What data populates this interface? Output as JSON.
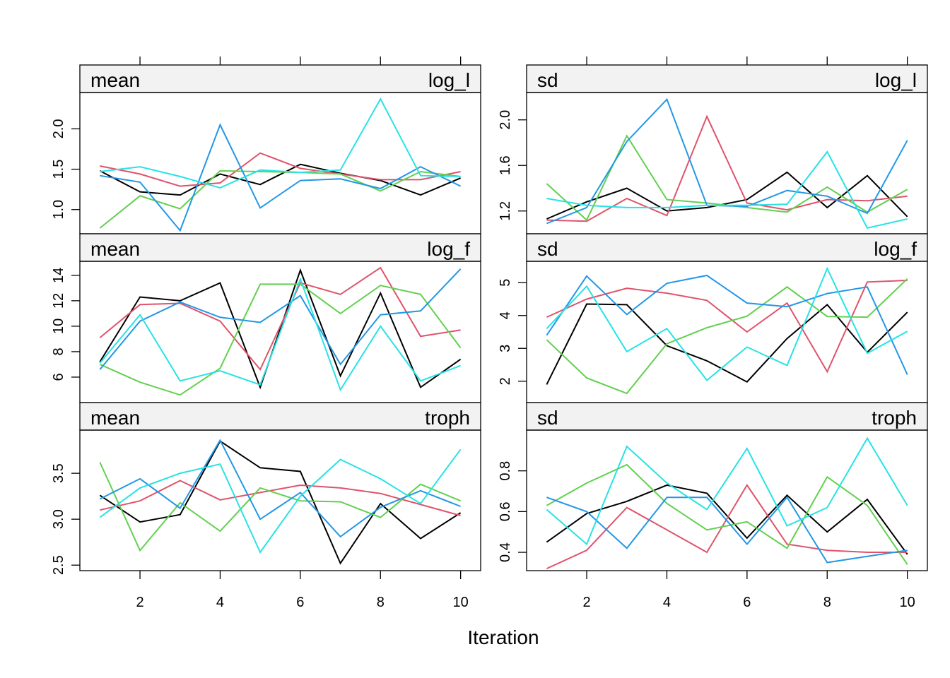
{
  "chart_data": {
    "type": "line",
    "xlabel": "Iteration",
    "x": [
      1,
      2,
      3,
      4,
      5,
      6,
      7,
      8,
      9,
      10
    ],
    "x_ticks": [
      2,
      4,
      6,
      8,
      10
    ],
    "xlim": [
      0.5,
      10.5
    ],
    "series_colors": [
      "#000000",
      "#DF536B",
      "#61D04F",
      "#2297E6",
      "#28E2E5"
    ],
    "layout": "2 columns x 3 rows",
    "panels": [
      {
        "stat": "mean",
        "variable": "log_l",
        "ylim": [
          0.7,
          2.45
        ],
        "y_ticks": [
          1.0,
          1.5,
          2.0
        ],
        "y_tick_labels": [
          "1.0",
          "1.5",
          "2.0"
        ],
        "series": [
          {
            "values": [
              1.48,
              1.22,
              1.18,
              1.44,
              1.31,
              1.56,
              1.45,
              1.36,
              1.18,
              1.39
            ]
          },
          {
            "values": [
              1.54,
              1.44,
              1.29,
              1.33,
              1.7,
              1.51,
              1.44,
              1.37,
              1.37,
              1.47
            ]
          },
          {
            "values": [
              0.77,
              1.17,
              1.01,
              1.48,
              1.47,
              1.46,
              1.44,
              1.23,
              1.47,
              1.41
            ]
          },
          {
            "values": [
              1.42,
              1.34,
              0.74,
              2.05,
              1.02,
              1.36,
              1.38,
              1.26,
              1.53,
              1.29
            ]
          },
          {
            "values": [
              1.47,
              1.53,
              1.41,
              1.27,
              1.49,
              1.46,
              1.49,
              2.37,
              1.42,
              1.41
            ]
          }
        ]
      },
      {
        "stat": "sd",
        "variable": "log_l",
        "ylim": [
          1.0,
          2.24
        ],
        "y_ticks": [
          1.2,
          1.6,
          2.0
        ],
        "y_tick_labels": [
          "1.2",
          "1.6",
          "2.0"
        ],
        "series": [
          {
            "values": [
              1.13,
              1.28,
              1.4,
              1.2,
              1.23,
              1.3,
              1.54,
              1.23,
              1.51,
              1.15
            ]
          },
          {
            "values": [
              1.12,
              1.11,
              1.31,
              1.16,
              2.03,
              1.27,
              1.21,
              1.3,
              1.29,
              1.33
            ]
          },
          {
            "values": [
              1.44,
              1.12,
              1.86,
              1.3,
              1.27,
              1.23,
              1.19,
              1.41,
              1.19,
              1.39
            ]
          },
          {
            "values": [
              1.09,
              1.23,
              1.81,
              2.18,
              1.25,
              1.24,
              1.38,
              1.33,
              1.18,
              1.82
            ]
          },
          {
            "values": [
              1.31,
              1.25,
              1.23,
              1.23,
              1.25,
              1.25,
              1.26,
              1.72,
              1.05,
              1.13
            ]
          }
        ]
      },
      {
        "stat": "mean",
        "variable": "log_f",
        "ylim": [
          4.0,
          15.1
        ],
        "y_ticks": [
          6,
          8,
          10,
          12,
          14
        ],
        "y_tick_labels": [
          "6",
          "8",
          "10",
          "12",
          "14"
        ],
        "series": [
          {
            "values": [
              7.2,
              12.3,
              12.0,
              13.4,
              5.2,
              14.4,
              6.1,
              12.6,
              5.2,
              7.4
            ]
          },
          {
            "values": [
              9.1,
              11.7,
              11.8,
              10.4,
              6.6,
              13.4,
              12.5,
              14.6,
              9.2,
              9.7
            ]
          },
          {
            "values": [
              7.0,
              5.6,
              4.6,
              6.7,
              13.3,
              13.3,
              11.0,
              13.2,
              12.5,
              8.3
            ]
          },
          {
            "values": [
              6.6,
              10.4,
              11.9,
              10.7,
              10.3,
              12.4,
              7.0,
              10.9,
              11.2,
              14.5
            ]
          },
          {
            "values": [
              7.1,
              10.9,
              5.7,
              6.5,
              5.4,
              13.7,
              5.0,
              10.0,
              5.7,
              6.9
            ]
          }
        ]
      },
      {
        "stat": "sd",
        "variable": "log_f",
        "ylim": [
          1.35,
          5.65
        ],
        "y_ticks": [
          2,
          3,
          4,
          5
        ],
        "y_tick_labels": [
          "2",
          "3",
          "4",
          "5"
        ],
        "series": [
          {
            "values": [
              1.9,
              4.35,
              4.33,
              3.08,
              2.62,
              1.98,
              3.3,
              4.33,
              2.88,
              4.1
            ]
          },
          {
            "values": [
              3.95,
              4.5,
              4.83,
              4.68,
              4.46,
              3.5,
              4.38,
              2.29,
              5.02,
              5.07
            ]
          },
          {
            "values": [
              3.26,
              2.1,
              1.63,
              3.14,
              3.63,
              3.98,
              4.87,
              3.97,
              3.95,
              5.12
            ]
          },
          {
            "values": [
              3.4,
              5.2,
              4.03,
              4.98,
              5.22,
              4.38,
              4.27,
              4.67,
              4.87,
              2.2
            ]
          },
          {
            "values": [
              3.6,
              4.89,
              2.9,
              3.6,
              2.03,
              3.04,
              2.48,
              5.43,
              2.85,
              3.52
            ]
          }
        ]
      },
      {
        "stat": "mean",
        "variable": "troph",
        "ylim": [
          2.44,
          3.97
        ],
        "y_ticks": [
          2.5,
          3.0,
          3.5
        ],
        "y_tick_labels": [
          "2.5",
          "3.0",
          "3.5"
        ],
        "series": [
          {
            "values": [
              3.26,
              2.97,
              3.05,
              3.85,
              3.56,
              3.52,
              2.52,
              3.17,
              2.79,
              3.07
            ]
          },
          {
            "values": [
              3.1,
              3.2,
              3.42,
              3.21,
              3.29,
              3.37,
              3.34,
              3.28,
              3.16,
              3.04
            ]
          },
          {
            "values": [
              3.62,
              2.66,
              3.18,
              2.87,
              3.34,
              3.2,
              3.19,
              3.02,
              3.38,
              3.2
            ]
          },
          {
            "values": [
              3.22,
              3.44,
              3.12,
              3.86,
              3.0,
              3.29,
              2.81,
              3.13,
              3.31,
              3.14
            ]
          },
          {
            "values": [
              3.02,
              3.34,
              3.5,
              3.6,
              2.64,
              3.25,
              3.65,
              3.44,
              3.17,
              3.76
            ]
          }
        ]
      },
      {
        "stat": "sd",
        "variable": "troph",
        "ylim": [
          0.31,
          1.0
        ],
        "y_ticks": [
          0.4,
          0.6,
          0.8
        ],
        "y_tick_labels": [
          "0.4",
          "0.6",
          "0.8"
        ],
        "series": [
          {
            "values": [
              0.45,
              0.59,
              0.65,
              0.73,
              0.69,
              0.47,
              0.68,
              0.5,
              0.66,
              0.39
            ]
          },
          {
            "values": [
              0.32,
              0.41,
              0.62,
              0.51,
              0.4,
              0.73,
              0.44,
              0.41,
              0.4,
              0.4
            ]
          },
          {
            "values": [
              0.63,
              0.74,
              0.83,
              0.64,
              0.51,
              0.55,
              0.42,
              0.77,
              0.63,
              0.34
            ]
          },
          {
            "values": [
              0.67,
              0.6,
              0.42,
              0.67,
              0.67,
              0.44,
              0.67,
              0.35,
              0.38,
              0.41
            ]
          },
          {
            "values": [
              0.61,
              0.44,
              0.92,
              0.74,
              0.61,
              0.91,
              0.53,
              0.62,
              0.96,
              0.63
            ]
          }
        ]
      }
    ]
  }
}
